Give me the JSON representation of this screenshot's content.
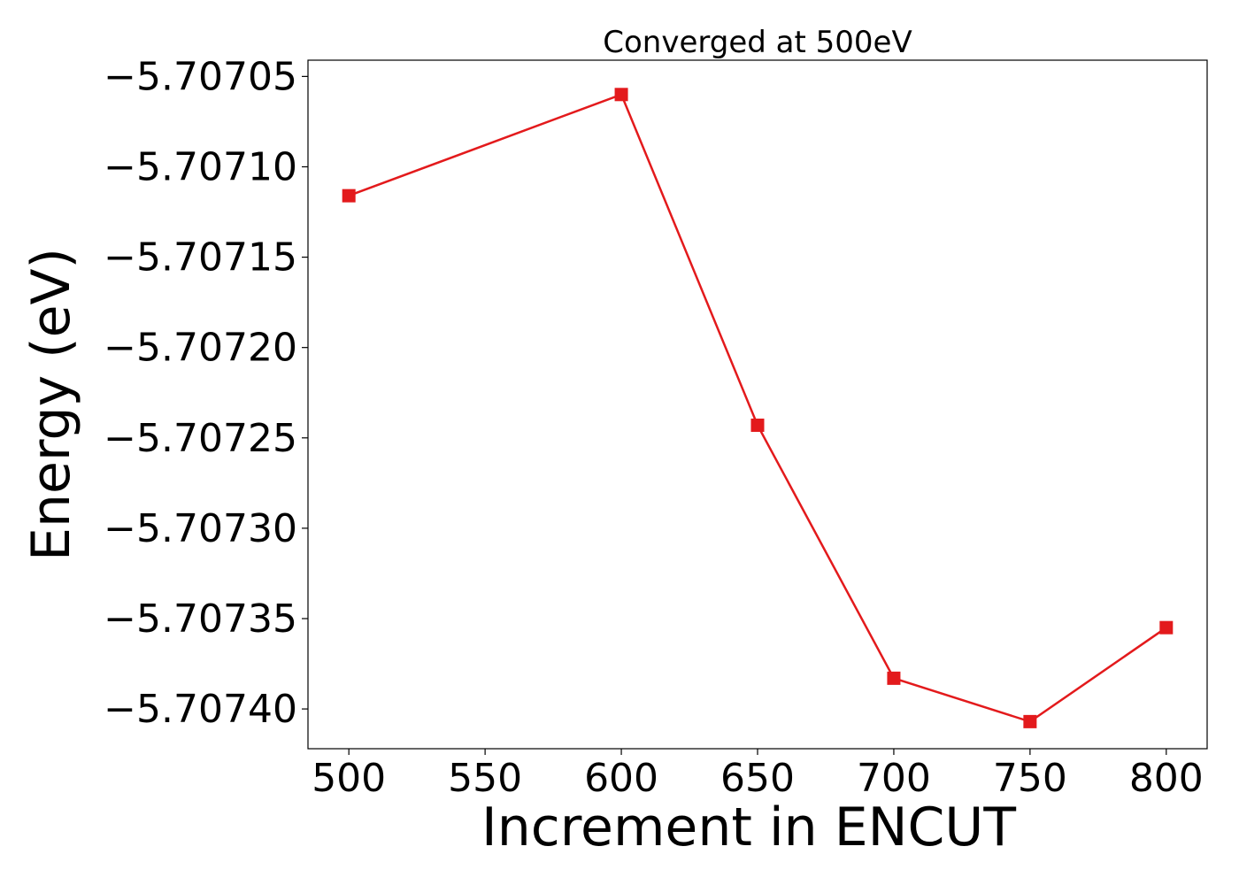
{
  "chart_data": {
    "type": "line",
    "title": "Converged at 500eV",
    "xlabel": "Increment in ENCUT",
    "ylabel": "Energy (eV)",
    "x": [
      500,
      600,
      650,
      700,
      750,
      800
    ],
    "series": [
      {
        "values": [
          -5.707116,
          -5.70706,
          -5.707243,
          -5.707383,
          -5.707407,
          -5.707355
        ]
      }
    ],
    "xticks": [
      500,
      550,
      600,
      650,
      700,
      750,
      800
    ],
    "xtick_labels": [
      "500",
      "550",
      "600",
      "650",
      "700",
      "750",
      "800"
    ],
    "yticks": [
      -5.70705,
      -5.7071,
      -5.70715,
      -5.7072,
      -5.70725,
      -5.7073,
      -5.70735,
      -5.7074
    ],
    "ytick_labels": [
      "−5.70705",
      "−5.70710",
      "−5.70715",
      "−5.70720",
      "−5.70725",
      "−5.70730",
      "−5.70735",
      "−5.70740"
    ],
    "xlim": [
      485,
      815
    ],
    "ylim": [
      -5.707422,
      -5.707041
    ],
    "grid": false,
    "marker": "square",
    "color": "#e31a1c"
  }
}
